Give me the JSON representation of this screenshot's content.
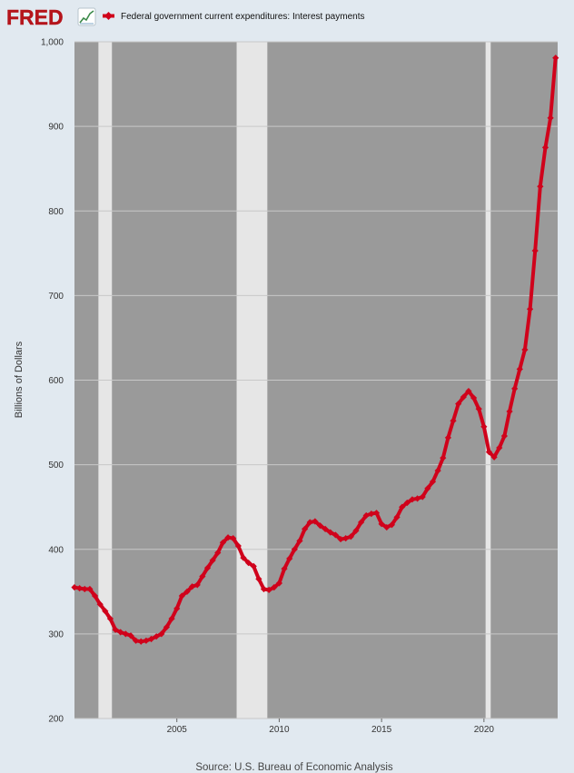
{
  "brand": {
    "logo_text": "FRED",
    "logo_icon": "trend-line-icon"
  },
  "source": "Source: U.S. Bureau of Economic Analysis",
  "colors": {
    "background": "#e1e9f0",
    "plot_background": "#9a9a9a",
    "recession_band": "#e6e6e6",
    "series_line": "#d0021b",
    "gridline": "#c8c8c8",
    "logo": "#b5141b"
  },
  "chart_data": {
    "type": "line",
    "title": "",
    "xlabel": "",
    "ylabel": "Billions of Dollars",
    "ylim": [
      200,
      1000
    ],
    "y_ticks": [
      200,
      300,
      400,
      500,
      600,
      700,
      800,
      900,
      1000
    ],
    "y_tick_labels": [
      "200",
      "300",
      "400",
      "500",
      "600",
      "700",
      "800",
      "900",
      "1,000"
    ],
    "x_range": [
      2000.0,
      2023.6
    ],
    "x_ticks": [
      2005,
      2010,
      2015,
      2020
    ],
    "x_tick_labels": [
      "2005",
      "2010",
      "2015",
      "2020"
    ],
    "grid": true,
    "legend_position": "top-left",
    "recessions": [
      [
        2001.17,
        2001.83
      ],
      [
        2007.92,
        2009.42
      ],
      [
        2020.08,
        2020.33
      ]
    ],
    "series": [
      {
        "name": "Federal government current expenditures: Interest payments",
        "x": [
          2000.0,
          2000.25,
          2000.5,
          2000.75,
          2001.0,
          2001.25,
          2001.5,
          2001.75,
          2002.0,
          2002.25,
          2002.5,
          2002.75,
          2003.0,
          2003.25,
          2003.5,
          2003.75,
          2004.0,
          2004.25,
          2004.5,
          2004.75,
          2005.0,
          2005.25,
          2005.5,
          2005.75,
          2006.0,
          2006.25,
          2006.5,
          2006.75,
          2007.0,
          2007.25,
          2007.5,
          2007.75,
          2008.0,
          2008.25,
          2008.5,
          2008.75,
          2009.0,
          2009.25,
          2009.5,
          2009.75,
          2010.0,
          2010.25,
          2010.5,
          2010.75,
          2011.0,
          2011.25,
          2011.5,
          2011.75,
          2012.0,
          2012.25,
          2012.5,
          2012.75,
          2013.0,
          2013.25,
          2013.5,
          2013.75,
          2014.0,
          2014.25,
          2014.5,
          2014.75,
          2015.0,
          2015.25,
          2015.5,
          2015.75,
          2016.0,
          2016.25,
          2016.5,
          2016.75,
          2017.0,
          2017.25,
          2017.5,
          2017.75,
          2018.0,
          2018.25,
          2018.5,
          2018.75,
          2019.0,
          2019.25,
          2019.5,
          2019.75,
          2020.0,
          2020.25,
          2020.5,
          2020.75,
          2021.0,
          2021.25,
          2021.5,
          2021.75,
          2022.0,
          2022.25,
          2022.5,
          2022.75,
          2023.0,
          2023.25,
          2023.5
        ],
        "values": [
          355,
          354,
          353,
          353,
          345,
          335,
          327,
          318,
          305,
          302,
          300,
          298,
          292,
          291,
          292,
          294,
          297,
          300,
          308,
          318,
          330,
          345,
          350,
          356,
          358,
          368,
          378,
          387,
          396,
          408,
          414,
          413,
          404,
          390,
          384,
          380,
          365,
          353,
          352,
          355,
          360,
          377,
          389,
          400,
          410,
          424,
          432,
          433,
          428,
          424,
          420,
          417,
          412,
          413,
          415,
          422,
          432,
          440,
          442,
          443,
          430,
          426,
          429,
          438,
          450,
          455,
          459,
          460,
          462,
          472,
          480,
          493,
          508,
          532,
          552,
          572,
          580,
          587,
          579,
          566,
          545,
          515,
          509,
          520,
          534,
          563,
          590,
          613,
          636,
          684,
          753,
          829,
          875,
          910,
          981
        ]
      }
    ]
  }
}
